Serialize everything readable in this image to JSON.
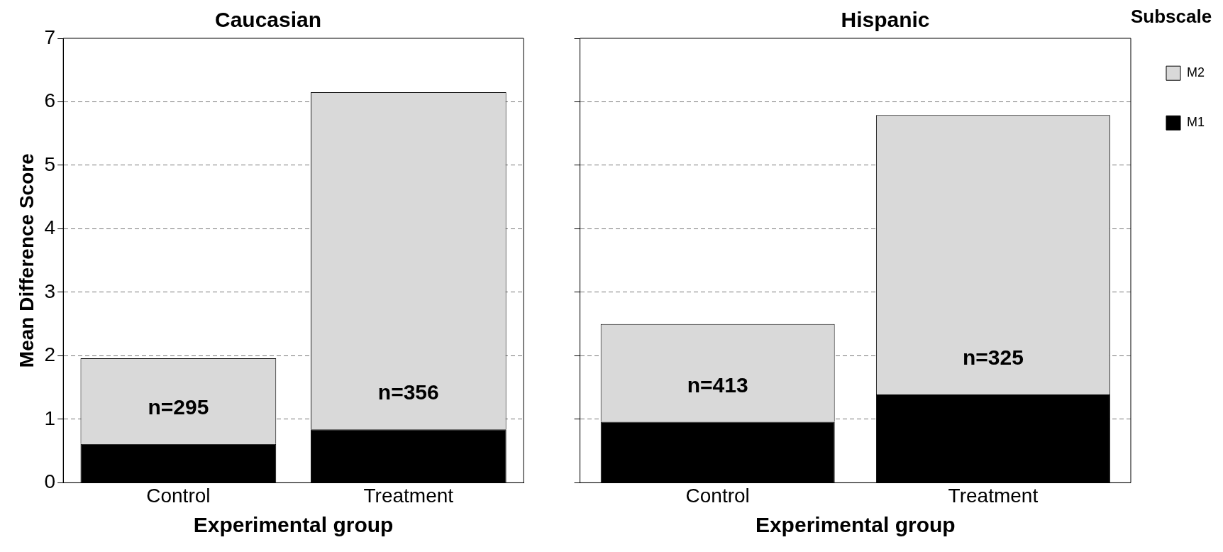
{
  "chart_data": [
    {
      "type": "bar",
      "title": "Caucasian",
      "xlabel": "Experimental group",
      "ylabel": "Mean Difference Score",
      "categories": [
        "Control",
        "Treatment"
      ],
      "stacked": true,
      "series": [
        {
          "color": "#000000",
          "values": [
            0.61,
            0.84
          ]
        },
        {
          "color": "#d9d9d9",
          "values": [
            1.35,
            5.31
          ]
        }
      ],
      "ylim": [
        0,
        7
      ],
      "yticks": [
        0,
        1,
        2,
        3,
        4,
        5,
        6,
        7
      ],
      "grid": "y",
      "legend": false,
      "annotations": [
        "n=295",
        "n=356"
      ]
    },
    {
      "type": "bar",
      "title": "Hispanic",
      "xlabel": "Experimental group",
      "categories": [
        "Control",
        "Treatment"
      ],
      "stacked": true,
      "legend_title": "Subscale",
      "series": [
        {
          "name": "M1",
          "color": "#000000",
          "values": [
            0.96,
            1.39
          ]
        },
        {
          "name": "M2",
          "color": "#d9d9d9",
          "values": [
            1.54,
            4.4
          ]
        }
      ],
      "ylim": [
        0,
        7
      ],
      "yticks": [
        0,
        1,
        2,
        3,
        4,
        5,
        6,
        7
      ],
      "grid": "y",
      "legend": "top right",
      "tick_labels": "x",
      "annotations": [
        "n=413",
        "n=325"
      ]
    }
  ]
}
